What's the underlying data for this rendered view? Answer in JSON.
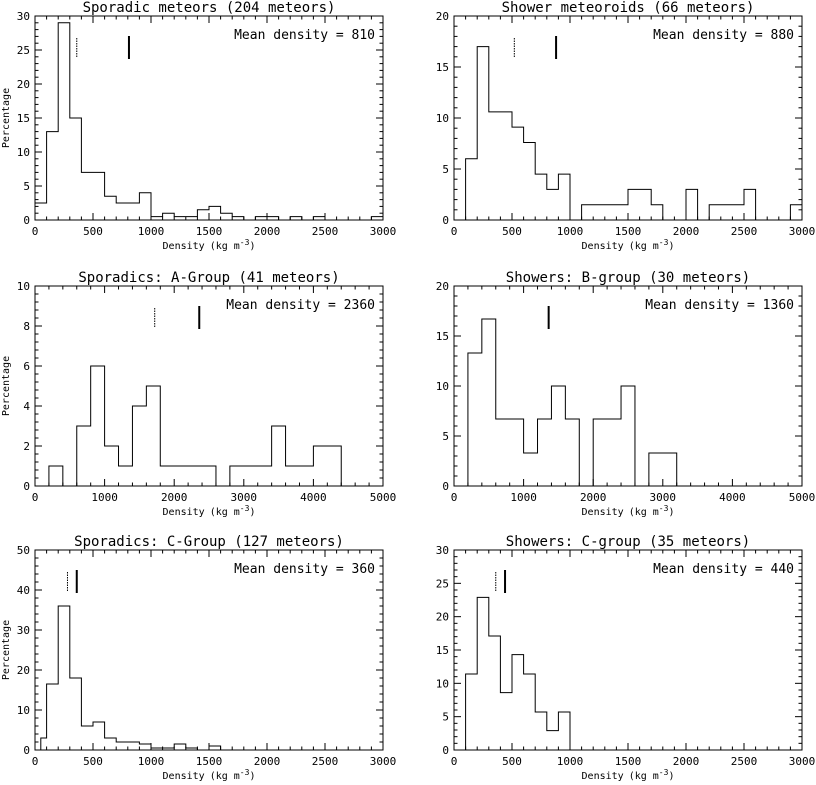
{
  "figure": {
    "panels_count": 6
  },
  "chart_data": [
    {
      "type": "histogram",
      "title": "Sporadic meteors (204 meteors)",
      "xlabel": "Density",
      "xunit": "(kg m",
      "xunit_exp": "-3",
      "ylabel": "Percentage",
      "annotation": "Mean density = 810",
      "xlim": [
        0,
        3000
      ],
      "ylim": [
        0,
        30
      ],
      "xticks": [
        0,
        500,
        1000,
        1500,
        2000,
        2500,
        3000
      ],
      "yticks": [
        0,
        5,
        10,
        15,
        20,
        25,
        30
      ],
      "bin_edges": [
        0,
        100,
        200,
        300,
        400,
        600,
        700,
        900,
        1000,
        1100,
        1200,
        1400,
        1500,
        1600,
        1700,
        1800,
        1900,
        2100,
        2200,
        2300,
        2400,
        2500,
        2600,
        2900,
        3000
      ],
      "values": [
        2.5,
        13,
        29,
        15,
        7,
        3.5,
        2.5,
        4,
        0.5,
        1,
        0.5,
        1.5,
        2,
        1,
        0.5,
        0,
        0.5,
        0,
        0.5,
        0,
        0.5,
        0,
        0,
        0.5
      ],
      "mean_marker": 810,
      "median_marker": 360
    },
    {
      "type": "histogram",
      "title": "Shower meteoroids (66 meteors)",
      "xlabel": "Density",
      "xunit": "(kg m",
      "xunit_exp": "-3",
      "ylabel": "",
      "annotation": "Mean density = 880",
      "xlim": [
        0,
        3000
      ],
      "ylim": [
        0,
        20
      ],
      "xticks": [
        0,
        500,
        1000,
        1500,
        2000,
        2500,
        3000
      ],
      "yticks": [
        0,
        5,
        10,
        15,
        20
      ],
      "bin_edges": [
        100,
        200,
        300,
        500,
        600,
        700,
        800,
        900,
        1000,
        1100,
        1500,
        1700,
        1800,
        2000,
        2100,
        2200,
        2500,
        2600,
        2900,
        3000
      ],
      "values": [
        6,
        17,
        10.6,
        9.1,
        7.6,
        4.5,
        3,
        4.5,
        0,
        1.5,
        3,
        1.5,
        0,
        3,
        0,
        1.5,
        3,
        0,
        1.5
      ],
      "mean_marker": 880,
      "median_marker": 520
    },
    {
      "type": "histogram",
      "title": "Sporadics: A-Group (41 meteors)",
      "xlabel": "Density",
      "xunit": "(kg m",
      "xunit_exp": "-3",
      "ylabel": "Percentage",
      "annotation": "Mean density = 2360",
      "xlim": [
        0,
        5000
      ],
      "ylim": [
        0,
        10
      ],
      "xticks": [
        0,
        1000,
        2000,
        3000,
        4000,
        5000
      ],
      "yticks": [
        0,
        2,
        4,
        6,
        8,
        10
      ],
      "bin_edges": [
        200,
        400,
        600,
        800,
        1000,
        1200,
        1400,
        1600,
        1800,
        2600,
        2800,
        3400,
        3600,
        4000,
        4400
      ],
      "values": [
        1,
        0,
        3,
        6,
        2,
        1,
        4,
        5,
        1,
        0,
        1,
        3,
        1,
        2
      ],
      "mean_marker": 2360,
      "median_marker": 1720
    },
    {
      "type": "histogram",
      "title": "Showers: B-group (30 meteors)",
      "xlabel": "Density",
      "xunit": "(kg m",
      "xunit_exp": "-3",
      "ylabel": "",
      "annotation": "Mean density = 1360",
      "xlim": [
        0,
        5000
      ],
      "ylim": [
        0,
        20
      ],
      "xticks": [
        0,
        1000,
        2000,
        3000,
        4000,
        5000
      ],
      "yticks": [
        0,
        5,
        10,
        15,
        20
      ],
      "bin_edges": [
        200,
        400,
        600,
        1000,
        1200,
        1400,
        1600,
        1800,
        2000,
        2400,
        2600,
        2800,
        3200
      ],
      "values": [
        13.3,
        16.7,
        6.7,
        3.3,
        6.7,
        10,
        6.7,
        0,
        6.7,
        10,
        0,
        3.3
      ],
      "mean_marker": 1360,
      "median_marker": 1360
    },
    {
      "type": "histogram",
      "title": "Sporadics: C-Group (127 meteors)",
      "xlabel": "Density",
      "xunit": "(kg m",
      "xunit_exp": "-3",
      "ylabel": "Percentage",
      "annotation": "Mean density = 360",
      "xlim": [
        0,
        3000
      ],
      "ylim": [
        0,
        50
      ],
      "xticks": [
        0,
        500,
        1000,
        1500,
        2000,
        2500,
        3000
      ],
      "yticks": [
        0,
        10,
        20,
        30,
        40,
        50
      ],
      "bin_edges": [
        50,
        100,
        200,
        300,
        400,
        500,
        600,
        700,
        900,
        1000,
        1200,
        1300,
        1400,
        1500,
        1600
      ],
      "values": [
        3,
        16.5,
        36,
        18,
        6,
        7,
        3,
        2,
        1.5,
        0.5,
        1.5,
        0.5,
        0,
        1
      ],
      "mean_marker": 360,
      "median_marker": 280
    },
    {
      "type": "histogram",
      "title": "Showers: C-group (35 meteors)",
      "xlabel": "Density",
      "xunit": "(kg m",
      "xunit_exp": "-3",
      "ylabel": "",
      "annotation": "Mean density = 440",
      "xlim": [
        0,
        3000
      ],
      "ylim": [
        0,
        30
      ],
      "xticks": [
        0,
        500,
        1000,
        1500,
        2000,
        2500,
        3000
      ],
      "yticks": [
        0,
        5,
        10,
        15,
        20,
        25,
        30
      ],
      "bin_edges": [
        100,
        200,
        300,
        400,
        500,
        600,
        700,
        800,
        900,
        1000
      ],
      "values": [
        11.4,
        22.9,
        17.1,
        8.6,
        14.3,
        11.4,
        5.7,
        2.9,
        5.7
      ],
      "mean_marker": 440,
      "median_marker": 360
    }
  ]
}
